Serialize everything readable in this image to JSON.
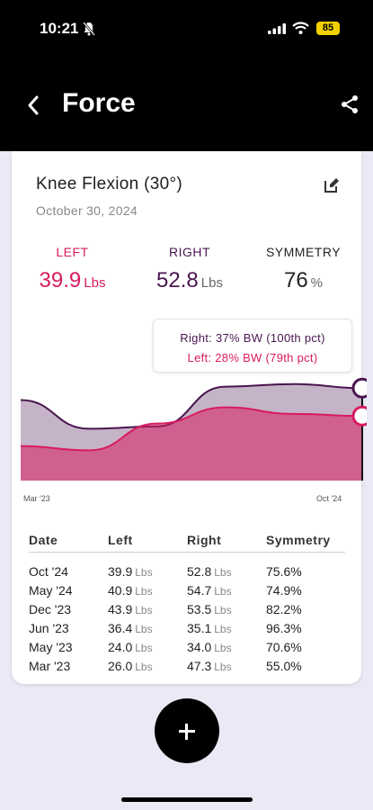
{
  "status": {
    "time": "10:21",
    "battery": "85"
  },
  "header": {
    "title": "Force"
  },
  "card": {
    "title": "Knee Flexion (30°)",
    "date": "October 30, 2024",
    "left": {
      "label": "LEFT",
      "value": "39.9",
      "unit": "Lbs"
    },
    "right": {
      "label": "RIGHT",
      "value": "52.8",
      "unit": "Lbs"
    },
    "symmetry": {
      "label": "SYMMETRY",
      "value": "76",
      "unit": "%"
    },
    "tooltip": {
      "right": "Right: 37% BW (100th pct)",
      "left": "Left: 28% BW (79th pct)"
    },
    "axis": {
      "start": "Mar '23",
      "end": "Oct '24"
    }
  },
  "chart_data": {
    "type": "area",
    "x": [
      "Mar '23",
      "May '23",
      "Jun '23",
      "Dec '23",
      "May '24",
      "Oct '24"
    ],
    "series": [
      {
        "name": "Right",
        "values": [
          47.3,
          34.0,
          35.1,
          53.5,
          54.7,
          52.8
        ],
        "color": "#4a1650"
      },
      {
        "name": "Left",
        "values": [
          26.0,
          24.0,
          36.4,
          43.9,
          40.9,
          39.9
        ],
        "color": "#d81b60"
      }
    ]
  },
  "table": {
    "headers": [
      "Date",
      "Left",
      "Right",
      "Symmetry"
    ],
    "unit": "Lbs",
    "rows": [
      {
        "date": "Oct '24",
        "left": "39.9",
        "right": "52.8",
        "sym": "75.6%"
      },
      {
        "date": "May '24",
        "left": "40.9",
        "right": "54.7",
        "sym": "74.9%"
      },
      {
        "date": "Dec '23",
        "left": "43.9",
        "right": "53.5",
        "sym": "82.2%"
      },
      {
        "date": "Jun '23",
        "left": "36.4",
        "right": "35.1",
        "sym": "96.3%"
      },
      {
        "date": "May '23",
        "left": "24.0",
        "right": "34.0",
        "sym": "70.6%"
      },
      {
        "date": "Mar '23",
        "left": "26.0",
        "right": "47.3",
        "sym": "55.0%"
      }
    ]
  },
  "colors": {
    "left": "#d81b60",
    "right": "#4a1650",
    "background": "#ece9f6"
  },
  "icons": {
    "back": "chevron-left-icon",
    "share": "share-icon",
    "edit": "edit-icon",
    "add": "plus-icon"
  }
}
